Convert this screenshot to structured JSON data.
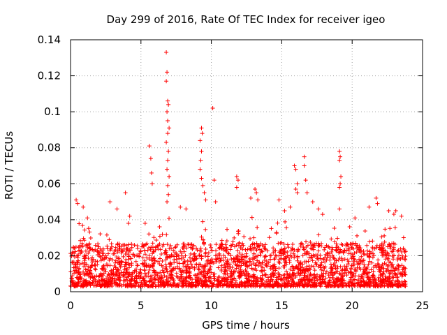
{
  "colors": {
    "background": "#ffffff",
    "points": "#ff0000",
    "axes": "#000000",
    "grid": "#a0a0a0"
  },
  "chart_data": {
    "type": "scatter",
    "title": "Day 299 of 2016, Rate Of TEC Index for receiver igeo",
    "xlabel": "GPS time / hours",
    "ylabel": "ROTI / TECUs",
    "xlim": [
      0,
      25
    ],
    "ylim": [
      0,
      0.14
    ],
    "xticks": [
      0,
      5,
      10,
      15,
      20,
      25
    ],
    "xtick_labels": [
      "0",
      "5",
      "10",
      "15",
      "20",
      "25"
    ],
    "yticks": [
      0,
      0.02,
      0.04,
      0.06,
      0.08,
      0.1,
      0.12,
      0.14
    ],
    "ytick_labels": [
      "0",
      "0.02",
      "0.04",
      "0.06",
      "0.08",
      "0.1",
      "0.12",
      "0.14"
    ],
    "grid": true,
    "marker": "+",
    "series": [
      {
        "name": "ROTI",
        "x_range": [
          0,
          23.8
        ],
        "description_points": [
          [
            0.4,
            0.051
          ],
          [
            0.5,
            0.049
          ],
          [
            0.9,
            0.047
          ],
          [
            1.2,
            0.041
          ],
          [
            2.8,
            0.05
          ],
          [
            3.3,
            0.046
          ],
          [
            3.9,
            0.055
          ],
          [
            4.2,
            0.042
          ],
          [
            5.3,
            0.038
          ],
          [
            5.6,
            0.081
          ],
          [
            5.7,
            0.074
          ],
          [
            5.75,
            0.066
          ],
          [
            5.8,
            0.06
          ],
          [
            6.8,
            0.133
          ],
          [
            6.85,
            0.122
          ],
          [
            6.8,
            0.117
          ],
          [
            6.9,
            0.106
          ],
          [
            6.95,
            0.104
          ],
          [
            6.85,
            0.1
          ],
          [
            6.9,
            0.095
          ],
          [
            7.0,
            0.091
          ],
          [
            6.9,
            0.088
          ],
          [
            6.8,
            0.083
          ],
          [
            6.95,
            0.078
          ],
          [
            6.9,
            0.073
          ],
          [
            6.85,
            0.068
          ],
          [
            7.0,
            0.064
          ],
          [
            6.9,
            0.059
          ],
          [
            6.95,
            0.054
          ],
          [
            6.85,
            0.05
          ],
          [
            7.8,
            0.047
          ],
          [
            8.2,
            0.046
          ],
          [
            9.3,
            0.091
          ],
          [
            9.35,
            0.088
          ],
          [
            9.2,
            0.084
          ],
          [
            9.3,
            0.078
          ],
          [
            9.25,
            0.073
          ],
          [
            9.2,
            0.068
          ],
          [
            9.3,
            0.063
          ],
          [
            9.4,
            0.059
          ],
          [
            9.5,
            0.055
          ],
          [
            9.6,
            0.051
          ],
          [
            10.1,
            0.102
          ],
          [
            10.2,
            0.062
          ],
          [
            10.3,
            0.05
          ],
          [
            11.8,
            0.064
          ],
          [
            11.9,
            0.062
          ],
          [
            11.8,
            0.058
          ],
          [
            12.8,
            0.052
          ],
          [
            13.1,
            0.057
          ],
          [
            13.2,
            0.055
          ],
          [
            13.3,
            0.051
          ],
          [
            14.8,
            0.051
          ],
          [
            15.2,
            0.045
          ],
          [
            15.6,
            0.047
          ],
          [
            15.9,
            0.07
          ],
          [
            16.0,
            0.068
          ],
          [
            16.1,
            0.06
          ],
          [
            16.0,
            0.057
          ],
          [
            16.1,
            0.055
          ],
          [
            16.6,
            0.075
          ],
          [
            16.6,
            0.07
          ],
          [
            16.7,
            0.062
          ],
          [
            16.8,
            0.055
          ],
          [
            17.2,
            0.05
          ],
          [
            17.6,
            0.046
          ],
          [
            17.9,
            0.043
          ],
          [
            19.1,
            0.078
          ],
          [
            19.15,
            0.075
          ],
          [
            19.1,
            0.073
          ],
          [
            19.2,
            0.064
          ],
          [
            19.15,
            0.06
          ],
          [
            19.1,
            0.058
          ],
          [
            19.1,
            0.046
          ],
          [
            20.2,
            0.041
          ],
          [
            21.2,
            0.047
          ],
          [
            21.7,
            0.052
          ],
          [
            21.8,
            0.049
          ],
          [
            22.6,
            0.045
          ],
          [
            23.1,
            0.045
          ],
          [
            23.5,
            0.042
          ]
        ]
      }
    ]
  }
}
